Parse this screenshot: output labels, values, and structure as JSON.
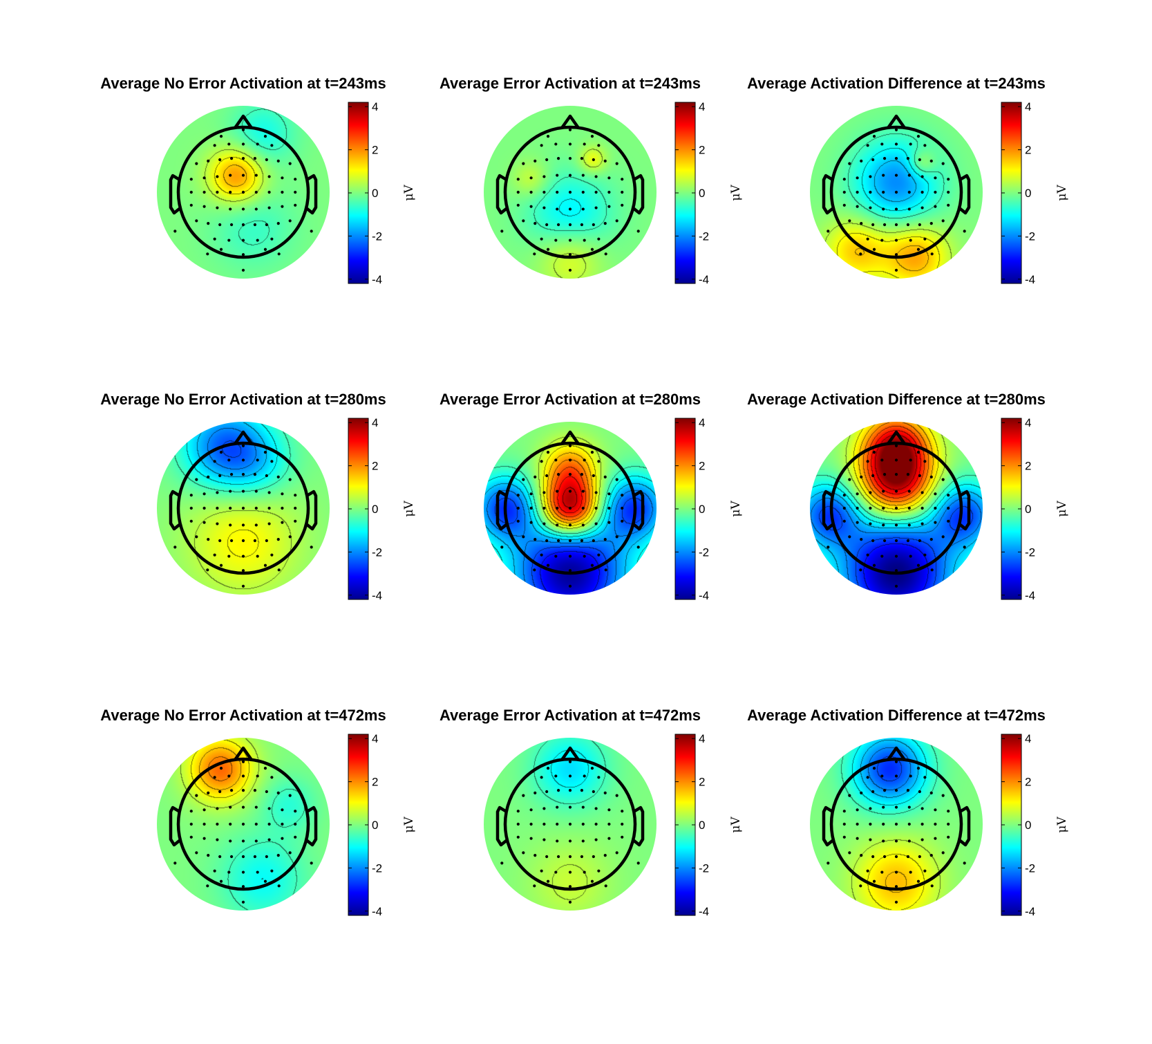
{
  "chart_data": [
    {
      "type": "heatmap",
      "title": "Average No Error Activation at t=243ms",
      "colorbar": {
        "label": "μV",
        "ticks": [
          "4",
          "2",
          "0",
          "-2",
          "-4"
        ],
        "range": [
          -4.2,
          4.2
        ],
        "colormap": "jet"
      },
      "sources": [
        {
          "x": -0.1,
          "y": 0.25,
          "v": 2.0,
          "s": 0.3
        },
        {
          "x": 0.15,
          "y": -0.55,
          "v": -0.6,
          "s": 0.45
        },
        {
          "x": 0.3,
          "y": 0.9,
          "v": -0.9,
          "s": 0.35
        }
      ]
    },
    {
      "type": "heatmap",
      "title": "Average Error Activation at t=243ms",
      "colorbar": {
        "label": "μV",
        "ticks": [
          "4",
          "2",
          "0",
          "-2",
          "-4"
        ],
        "range": [
          -4.2,
          4.2
        ],
        "colormap": "jet"
      },
      "sources": [
        {
          "x": 0.0,
          "y": -0.35,
          "v": -1.2,
          "s": 0.45
        },
        {
          "x": 0.35,
          "y": 0.5,
          "v": 1.0,
          "s": 0.15
        },
        {
          "x": -0.6,
          "y": 0.2,
          "v": 0.7,
          "s": 0.2
        },
        {
          "x": 0.0,
          "y": -1.0,
          "v": 1.0,
          "s": 0.35
        }
      ]
    },
    {
      "type": "heatmap",
      "title": "Average Activation Difference at t=243ms",
      "colorbar": {
        "label": "μV",
        "ticks": [
          "4",
          "2",
          "0",
          "-2",
          "-4"
        ],
        "range": [
          -4.2,
          4.2
        ],
        "colormap": "jet"
      },
      "sources": [
        {
          "x": 0.0,
          "y": 0.15,
          "v": -2.0,
          "s": 0.45
        },
        {
          "x": 0.3,
          "y": -1.0,
          "v": 1.8,
          "s": 0.35
        },
        {
          "x": -0.6,
          "y": -0.9,
          "v": 1.5,
          "s": 0.35
        },
        {
          "x": 0.4,
          "y": 0.45,
          "v": 1.0,
          "s": 0.15
        }
      ]
    },
    {
      "type": "heatmap",
      "title": "Average No Error Activation at t=280ms",
      "colorbar": {
        "label": "μV",
        "ticks": [
          "4",
          "2",
          "0",
          "-2",
          "-4"
        ],
        "range": [
          -4.2,
          4.2
        ],
        "colormap": "jet"
      },
      "sources": [
        {
          "x": 0.0,
          "y": -0.5,
          "v": 1.1,
          "s": 0.6
        },
        {
          "x": -0.3,
          "y": 0.95,
          "v": -2.2,
          "s": 0.45
        },
        {
          "x": 0.2,
          "y": 0.7,
          "v": -1.0,
          "s": 0.4
        }
      ]
    },
    {
      "type": "heatmap",
      "title": "Average Error Activation at t=280ms",
      "colorbar": {
        "label": "μV",
        "ticks": [
          "4",
          "2",
          "0",
          "-2",
          "-4"
        ],
        "range": [
          -4.2,
          4.2
        ],
        "colormap": "jet"
      },
      "sources": [
        {
          "x": 0.0,
          "y": 0.0,
          "v": 4.3,
          "s": 0.32
        },
        {
          "x": 0.0,
          "y": 0.6,
          "v": 2.0,
          "s": 0.3
        },
        {
          "x": 0.0,
          "y": -1.0,
          "v": -4.0,
          "s": 0.6
        },
        {
          "x": -1.0,
          "y": 0.0,
          "v": -2.6,
          "s": 0.35
        },
        {
          "x": 1.0,
          "y": 0.0,
          "v": -2.6,
          "s": 0.35
        }
      ]
    },
    {
      "type": "heatmap",
      "title": "Average Activation Difference at t=280ms",
      "colorbar": {
        "label": "μV",
        "ticks": [
          "4",
          "2",
          "0",
          "-2",
          "-4"
        ],
        "range": [
          -4.2,
          4.2
        ],
        "colormap": "jet"
      },
      "sources": [
        {
          "x": 0.0,
          "y": 0.4,
          "v": 3.6,
          "s": 0.4
        },
        {
          "x": 0.0,
          "y": 0.95,
          "v": 3.2,
          "s": 0.35
        },
        {
          "x": 0.0,
          "y": -1.0,
          "v": -4.2,
          "s": 0.6
        },
        {
          "x": -1.05,
          "y": -0.1,
          "v": -2.5,
          "s": 0.35
        },
        {
          "x": 1.05,
          "y": -0.1,
          "v": -2.5,
          "s": 0.35
        }
      ]
    },
    {
      "type": "heatmap",
      "title": "Average No Error Activation at t=472ms",
      "colorbar": {
        "label": "μV",
        "ticks": [
          "4",
          "2",
          "0",
          "-2",
          "-4"
        ],
        "range": [
          -4.2,
          4.2
        ],
        "colormap": "jet"
      },
      "sources": [
        {
          "x": -0.35,
          "y": 0.85,
          "v": 2.3,
          "s": 0.35
        },
        {
          "x": 0.3,
          "y": -0.85,
          "v": -1.0,
          "s": 0.45
        },
        {
          "x": 0.7,
          "y": 0.3,
          "v": -0.7,
          "s": 0.3
        }
      ]
    },
    {
      "type": "heatmap",
      "title": "Average Error Activation at t=472ms",
      "colorbar": {
        "label": "μV",
        "ticks": [
          "4",
          "2",
          "0",
          "-2",
          "-4"
        ],
        "range": [
          -4.2,
          4.2
        ],
        "colormap": "jet"
      },
      "sources": [
        {
          "x": 0.0,
          "y": 0.85,
          "v": -1.3,
          "s": 0.4
        },
        {
          "x": 0.0,
          "y": -0.9,
          "v": 0.6,
          "s": 0.45
        }
      ]
    },
    {
      "type": "heatmap",
      "title": "Average Activation Difference at t=472ms",
      "colorbar": {
        "label": "μV",
        "ticks": [
          "4",
          "2",
          "0",
          "-2",
          "-4"
        ],
        "range": [
          -4.2,
          4.2
        ],
        "colormap": "jet"
      },
      "sources": [
        {
          "x": -0.1,
          "y": 0.85,
          "v": -2.8,
          "s": 0.4
        },
        {
          "x": 0.0,
          "y": -0.9,
          "v": 1.6,
          "s": 0.45
        }
      ]
    }
  ],
  "electrodes": [
    [
      0,
      0.96
    ],
    [
      -0.34,
      0.86
    ],
    [
      0.34,
      0.86
    ],
    [
      0,
      0.74
    ],
    [
      -0.22,
      0.74
    ],
    [
      0.22,
      0.74
    ],
    [
      -0.44,
      0.72
    ],
    [
      0.44,
      0.72
    ],
    [
      0,
      0.52
    ],
    [
      -0.18,
      0.52
    ],
    [
      0.18,
      0.52
    ],
    [
      -0.36,
      0.5
    ],
    [
      0.36,
      0.5
    ],
    [
      -0.54,
      0.48
    ],
    [
      0.54,
      0.48
    ],
    [
      -0.72,
      0.44
    ],
    [
      0.72,
      0.44
    ],
    [
      0,
      0.26
    ],
    [
      -0.2,
      0.26
    ],
    [
      0.2,
      0.26
    ],
    [
      -0.4,
      0.24
    ],
    [
      0.4,
      0.24
    ],
    [
      -0.6,
      0.22
    ],
    [
      0.6,
      0.22
    ],
    [
      -0.8,
      0.2
    ],
    [
      0.8,
      0.2
    ],
    [
      0,
      0
    ],
    [
      -0.2,
      0
    ],
    [
      0.2,
      0
    ],
    [
      -0.4,
      0
    ],
    [
      0.4,
      0
    ],
    [
      -0.6,
      0
    ],
    [
      0.6,
      0
    ],
    [
      -0.8,
      0
    ],
    [
      0.8,
      0
    ],
    [
      -1.0,
      0
    ],
    [
      1.0,
      0
    ],
    [
      0,
      -0.26
    ],
    [
      -0.2,
      -0.26
    ],
    [
      0.2,
      -0.26
    ],
    [
      -0.4,
      -0.24
    ],
    [
      0.4,
      -0.24
    ],
    [
      -0.6,
      -0.22
    ],
    [
      0.6,
      -0.22
    ],
    [
      -0.8,
      -0.2
    ],
    [
      0.8,
      -0.2
    ],
    [
      0,
      -0.5
    ],
    [
      -0.18,
      -0.5
    ],
    [
      0.18,
      -0.5
    ],
    [
      -0.36,
      -0.5
    ],
    [
      0.36,
      -0.5
    ],
    [
      -0.54,
      -0.48
    ],
    [
      0.54,
      -0.48
    ],
    [
      -0.72,
      -0.44
    ],
    [
      0.72,
      -0.44
    ],
    [
      0,
      -0.74
    ],
    [
      -0.22,
      -0.74
    ],
    [
      0.22,
      -0.74
    ],
    [
      -0.44,
      -0.72
    ],
    [
      0.44,
      -0.72
    ],
    [
      0,
      -0.96
    ],
    [
      -0.34,
      -0.88
    ],
    [
      0.34,
      -0.88
    ],
    [
      -1.05,
      -0.6
    ],
    [
      1.05,
      -0.6
    ],
    [
      0,
      -1.2
    ],
    [
      -0.55,
      -0.95
    ],
    [
      0.55,
      -0.95
    ]
  ]
}
